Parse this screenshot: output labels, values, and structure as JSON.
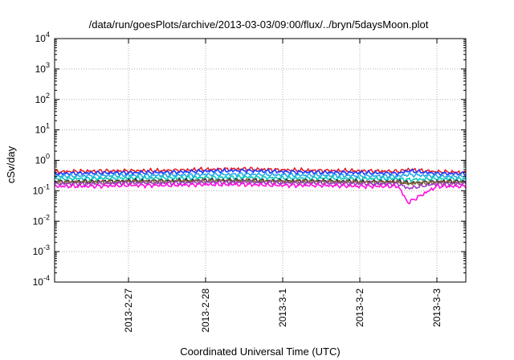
{
  "chart_data": {
    "type": "line",
    "title": "/data/run/goesPlots/archive/2013-03-03/09:00/flux/../bryn/5daysMoon.plot",
    "xlabel": "Coordinated Universal Time (UTC)",
    "ylabel": "cSv/day",
    "yscale": "log",
    "ylim": [
      0.0001,
      10000
    ],
    "y_ticks": [
      {
        "mant": "10",
        "exp": "-4",
        "value": 0.0001
      },
      {
        "mant": "10",
        "exp": "-3",
        "value": 0.001
      },
      {
        "mant": "10",
        "exp": "-2",
        "value": 0.01
      },
      {
        "mant": "10",
        "exp": "-1",
        "value": 0.1
      },
      {
        "mant": "10",
        "exp": "0",
        "value": 1
      },
      {
        "mant": "10",
        "exp": "1",
        "value": 10
      },
      {
        "mant": "10",
        "exp": "2",
        "value": 100
      },
      {
        "mant": "10",
        "exp": "3",
        "value": 1000
      },
      {
        "mant": "10",
        "exp": "4",
        "value": 10000
      }
    ],
    "xlim": [
      "2013-02-26 01:00",
      "2013-03-03 09:00"
    ],
    "x_ticks": [
      {
        "label": "2013-2-27",
        "value": "2013-02-27 00:00"
      },
      {
        "label": "2013-2-28",
        "value": "2013-02-28 00:00"
      },
      {
        "label": "2013-3-1",
        "value": "2013-03-01 00:00"
      },
      {
        "label": "2013-3-2",
        "value": "2013-03-02 00:00"
      },
      {
        "label": "2013-3-3",
        "value": "2013-03-03 00:00"
      }
    ],
    "grid": true,
    "legend": "none",
    "x": [
      "2013-02-26 01:00",
      "2013-02-26 12:00",
      "2013-02-27 00:00",
      "2013-02-27 12:00",
      "2013-02-28 00:00",
      "2013-02-28 12:00",
      "2013-03-01 00:00",
      "2013-03-01 12:00",
      "2013-03-02 00:00",
      "2013-03-02 12:00",
      "2013-03-02 15:00",
      "2013-03-03 00:00",
      "2013-03-03 09:00"
    ],
    "series": [
      {
        "color": "#e8202a",
        "values": [
          0.42,
          0.44,
          0.45,
          0.46,
          0.5,
          0.52,
          0.48,
          0.46,
          0.45,
          0.43,
          0.5,
          0.42,
          0.4
        ]
      },
      {
        "color": "#1e3cff",
        "values": [
          0.36,
          0.38,
          0.39,
          0.4,
          0.44,
          0.46,
          0.42,
          0.4,
          0.39,
          0.37,
          0.45,
          0.37,
          0.36
        ]
      },
      {
        "color": "#2aa8e8",
        "values": [
          0.3,
          0.31,
          0.32,
          0.32,
          0.34,
          0.35,
          0.33,
          0.32,
          0.31,
          0.3,
          0.34,
          0.3,
          0.29
        ]
      },
      {
        "color": "#10c8c0",
        "values": [
          0.25,
          0.25,
          0.26,
          0.26,
          0.27,
          0.28,
          0.26,
          0.26,
          0.25,
          0.25,
          0.23,
          0.25,
          0.24
        ]
      },
      {
        "color": "#303030",
        "values": [
          0.2,
          0.2,
          0.21,
          0.21,
          0.22,
          0.22,
          0.21,
          0.21,
          0.2,
          0.2,
          0.18,
          0.2,
          0.2
        ]
      },
      {
        "color": "#8a6a3a",
        "values": [
          0.19,
          0.19,
          0.2,
          0.2,
          0.21,
          0.21,
          0.2,
          0.2,
          0.19,
          0.19,
          0.17,
          0.19,
          0.19
        ]
      },
      {
        "color": "#a040c0",
        "values": [
          0.17,
          0.17,
          0.18,
          0.18,
          0.19,
          0.19,
          0.18,
          0.18,
          0.17,
          0.17,
          0.12,
          0.17,
          0.17
        ]
      },
      {
        "color": "#ff10e0",
        "values": [
          0.14,
          0.14,
          0.15,
          0.15,
          0.16,
          0.16,
          0.15,
          0.15,
          0.14,
          0.14,
          0.04,
          0.14,
          0.14
        ]
      }
    ]
  }
}
